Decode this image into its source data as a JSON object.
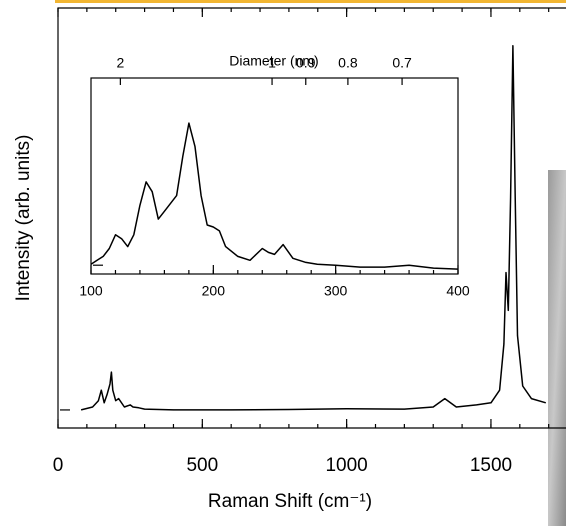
{
  "chart_data": [
    {
      "type": "line",
      "x_label": "Raman Shift (cm⁻¹)",
      "y_label": "Intensity (arb. units)",
      "xlim": [
        0,
        1760
      ],
      "ylim": [
        0,
        100
      ],
      "xticks": [
        0,
        500,
        1000,
        1500
      ],
      "series": [
        {
          "color": "#000000",
          "x": [
            80,
            120,
            140,
            150,
            160,
            170,
            180,
            185,
            190,
            200,
            210,
            230,
            250,
            260,
            280,
            300,
            400,
            600,
            800,
            1000,
            1200,
            1300,
            1340,
            1380,
            1450,
            1500,
            1530,
            1545,
            1552,
            1560,
            1568,
            1576,
            1584,
            1592,
            1610,
            1640,
            1690
          ],
          "values": [
            4.3,
            5,
            6.5,
            9,
            6,
            8,
            10.5,
            13.3,
            9,
            6.5,
            7,
            5,
            5.5,
            5,
            4.8,
            4.5,
            4.3,
            4.3,
            4.4,
            4.6,
            4.5,
            5,
            7,
            5,
            5.5,
            6,
            9,
            20,
            37,
            28,
            55,
            91,
            55,
            22,
            10,
            7,
            6
          ]
        }
      ]
    },
    {
      "type": "line",
      "x2_label": "Diameter (nm)",
      "xlim": [
        100,
        400
      ],
      "ylim": [
        0,
        100
      ],
      "xticks": [
        100,
        200,
        300,
        400
      ],
      "x2lim": [
        2.48,
        0.62
      ],
      "x2scale": "reciprocal",
      "x2ticks": [
        2,
        1,
        0.9,
        0.8,
        0.7
      ],
      "series": [
        {
          "color": "#000000",
          "x": [
            100,
            105,
            110,
            115,
            120,
            125,
            130,
            135,
            140,
            145,
            150,
            155,
            160,
            165,
            170,
            175,
            180,
            185,
            190,
            195,
            200,
            205,
            210,
            220,
            230,
            240,
            245,
            250,
            257,
            265,
            275,
            285,
            300,
            320,
            340,
            360,
            380,
            400
          ],
          "values": [
            5,
            7,
            9,
            13,
            20,
            18,
            14,
            20,
            35,
            47,
            42,
            28,
            32,
            36,
            40,
            60,
            77,
            65,
            40,
            25,
            24,
            22,
            14,
            9,
            7,
            13,
            11,
            10,
            15,
            8,
            6,
            5,
            4.5,
            3.5,
            3.5,
            4.5,
            3,
            2.5
          ]
        }
      ]
    }
  ]
}
